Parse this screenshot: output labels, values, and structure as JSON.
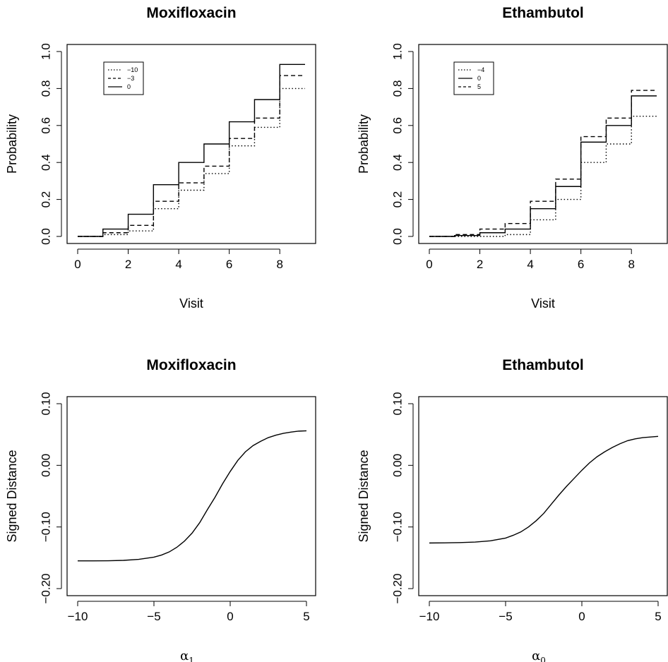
{
  "chart_data": [
    {
      "type": "line",
      "title": "Moxifloxacin",
      "xlabel": "Visit",
      "ylabel": "Probability",
      "xlim": [
        0,
        9
      ],
      "ylim": [
        0,
        1
      ],
      "x_ticks": [
        0,
        2,
        4,
        6,
        8
      ],
      "y_ticks": [
        0.0,
        0.2,
        0.4,
        0.6,
        0.8,
        1.0
      ],
      "y_tick_labels": [
        "0.0",
        "0.2",
        "0.4",
        "0.6",
        "0.8",
        "1.0"
      ],
      "grid": false,
      "legend_position": "top-left",
      "step": true,
      "x": [
        0,
        1,
        2,
        3,
        4,
        5,
        6,
        7,
        8,
        9
      ],
      "series": [
        {
          "name": "−10",
          "style": "dotted",
          "values": [
            0,
            0.01,
            0.03,
            0.15,
            0.25,
            0.34,
            0.49,
            0.59,
            0.8,
            0.8
          ]
        },
        {
          "name": "−3",
          "style": "dashed",
          "values": [
            0,
            0.02,
            0.06,
            0.19,
            0.29,
            0.38,
            0.53,
            0.64,
            0.87,
            0.87
          ]
        },
        {
          "name": "0",
          "style": "solid",
          "values": [
            0,
            0.04,
            0.12,
            0.28,
            0.4,
            0.5,
            0.62,
            0.74,
            0.93,
            0.93
          ]
        }
      ]
    },
    {
      "type": "line",
      "title": "Ethambutol",
      "xlabel": "Visit",
      "ylabel": "Probability",
      "xlim": [
        0,
        9
      ],
      "ylim": [
        0,
        1
      ],
      "x_ticks": [
        0,
        2,
        4,
        6,
        8
      ],
      "y_ticks": [
        0.0,
        0.2,
        0.4,
        0.6,
        0.8,
        1.0
      ],
      "y_tick_labels": [
        "0.0",
        "0.2",
        "0.4",
        "0.6",
        "0.8",
        "1.0"
      ],
      "grid": false,
      "legend_position": "top-left",
      "step": true,
      "x": [
        0,
        1,
        2,
        3,
        4,
        5,
        6,
        7,
        8,
        9
      ],
      "series": [
        {
          "name": "−4",
          "style": "dotted",
          "values": [
            0,
            0,
            0,
            0.01,
            0.09,
            0.2,
            0.4,
            0.5,
            0.65,
            0.65
          ]
        },
        {
          "name": "0",
          "style": "solid",
          "values": [
            0,
            0.005,
            0.02,
            0.04,
            0.15,
            0.27,
            0.51,
            0.6,
            0.76,
            0.76
          ]
        },
        {
          "name": "5",
          "style": "dashed",
          "values": [
            0,
            0.01,
            0.04,
            0.07,
            0.19,
            0.31,
            0.54,
            0.64,
            0.79,
            0.79
          ]
        }
      ]
    },
    {
      "type": "line",
      "title": "Moxifloxacin",
      "xlabel": "α",
      "xlabel_subscript": "1",
      "ylabel": "Signed Distance",
      "xlim": [
        -10,
        5
      ],
      "ylim": [
        -0.2,
        0.1
      ],
      "x_ticks": [
        -10,
        -5,
        0,
        5
      ],
      "x_tick_labels": [
        "−10",
        "−5",
        "0",
        "5"
      ],
      "y_ticks": [
        -0.2,
        -0.1,
        0.0,
        0.1
      ],
      "y_tick_labels": [
        "−0.20",
        "−0.10",
        "0.00",
        "0.10"
      ],
      "grid": false,
      "step": false,
      "x": [
        -10,
        -9,
        -8,
        -7,
        -6,
        -5,
        -4.5,
        -4,
        -3.5,
        -3,
        -2.5,
        -2,
        -1.5,
        -1,
        -0.5,
        0,
        0.5,
        1,
        1.5,
        2,
        2.5,
        3,
        3.5,
        4,
        4.5,
        5
      ],
      "series": [
        {
          "values": [
            -0.155,
            -0.155,
            -0.1548,
            -0.1542,
            -0.1525,
            -0.149,
            -0.1455,
            -0.1405,
            -0.133,
            -0.123,
            -0.11,
            -0.093,
            -0.072,
            -0.052,
            -0.03,
            -0.01,
            0.008,
            0.022,
            0.032,
            0.039,
            0.045,
            0.049,
            0.052,
            0.054,
            0.0555,
            0.056
          ]
        }
      ]
    },
    {
      "type": "line",
      "title": "Ethambutol",
      "xlabel": "α",
      "xlabel_subscript": "0",
      "ylabel": "Signed Distance",
      "xlim": [
        -10,
        5
      ],
      "ylim": [
        -0.2,
        0.1
      ],
      "x_ticks": [
        -10,
        -5,
        0,
        5
      ],
      "x_tick_labels": [
        "−10",
        "−5",
        "0",
        "5"
      ],
      "y_ticks": [
        -0.2,
        -0.1,
        0.0,
        0.1
      ],
      "y_tick_labels": [
        "−0.20",
        "−0.10",
        "0.00",
        "0.10"
      ],
      "grid": false,
      "step": false,
      "x": [
        -10,
        -9,
        -8,
        -7,
        -6,
        -5,
        -4.5,
        -4,
        -3.5,
        -3,
        -2.5,
        -2,
        -1.5,
        -1,
        -0.5,
        0,
        0.5,
        1,
        1.5,
        2,
        2.5,
        3,
        3.5,
        4,
        4.5,
        5
      ],
      "series": [
        {
          "values": [
            -0.126,
            -0.1258,
            -0.1254,
            -0.1245,
            -0.1225,
            -0.118,
            -0.1135,
            -0.108,
            -0.1,
            -0.09,
            -0.078,
            -0.063,
            -0.048,
            -0.034,
            -0.021,
            -0.008,
            0.004,
            0.014,
            0.022,
            0.029,
            0.035,
            0.04,
            0.043,
            0.045,
            0.046,
            0.047
          ]
        }
      ]
    }
  ]
}
